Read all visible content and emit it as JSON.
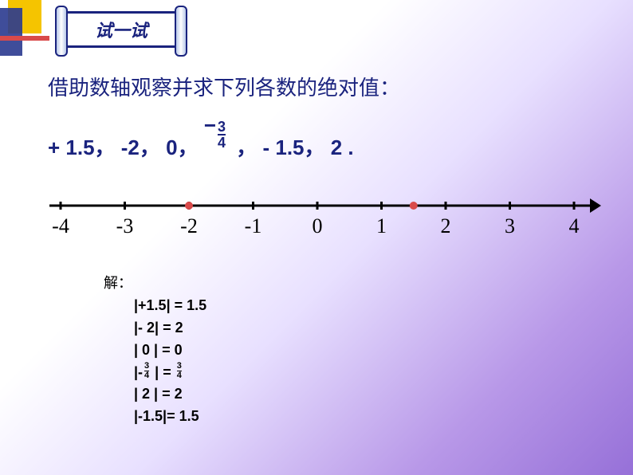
{
  "banner": {
    "title": "试一试"
  },
  "problem": {
    "line1": "借助数轴观察并求下列各数的绝对值：",
    "numbers_prefix": "+ 1.5，  -2， 0，",
    "frac_num": "3",
    "frac_den": "4",
    "numbers_suffix": "，  - 1.5，  2 .",
    "neg_sign": "−"
  },
  "numberline": {
    "min": -4,
    "max": 4,
    "ticks": [
      {
        "x": -4,
        "label": "-4"
      },
      {
        "x": -3,
        "label": "-3"
      },
      {
        "x": -2,
        "label": "-2"
      },
      {
        "x": -1,
        "label": "-1"
      },
      {
        "x": 0,
        "label": "0"
      },
      {
        "x": 1,
        "label": "1"
      },
      {
        "x": 2,
        "label": "2"
      },
      {
        "x": 3,
        "label": "3"
      },
      {
        "x": 4,
        "label": "4"
      }
    ],
    "points": [
      {
        "x": -2
      },
      {
        "x": 1.5
      }
    ],
    "axis_color": "#000000",
    "tick_color": "#000000",
    "label_color": "#000000",
    "point_color": "#d94a4a",
    "label_fontsize": 26,
    "tick_height": 10,
    "axis_stroke": 3,
    "point_radius": 5
  },
  "solution": {
    "label": "解：",
    "lines": [
      "|+1.5| = 1.5",
      "|- 2| = 2",
      "| 0 | = 0",
      "__FRAC_LINE__",
      "| 2 | = 2",
      "|-1.5|= 1.5"
    ],
    "frac_left": "|-",
    "frac_num": "3",
    "frac_den": "4",
    "frac_mid": "  | = ",
    "frac_num2": "3",
    "frac_den2": "4"
  }
}
